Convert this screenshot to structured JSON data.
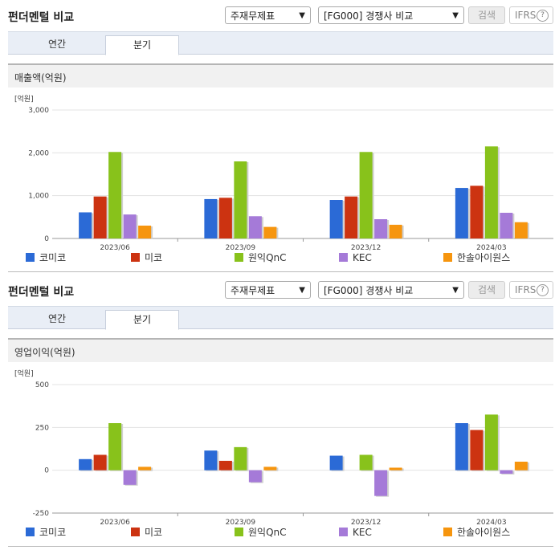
{
  "panels": [
    {
      "title": "펀더멘털 비교",
      "filter_type": "주재무제표",
      "filter_peer": "[FG000] 경쟁사 비교",
      "search_label": "검색",
      "ifrs_label": "IFRS",
      "help_label": "?",
      "tabs": [
        "연간",
        "분기"
      ],
      "section_title": "매출액(억원)"
    },
    {
      "title": "펀더멘털 비교",
      "filter_type": "주재무제표",
      "filter_peer": "[FG000] 경쟁사 비교",
      "search_label": "검색",
      "ifrs_label": "IFRS",
      "help_label": "?",
      "tabs": [
        "연간",
        "분기"
      ],
      "section_title": "영업이익(억원)"
    }
  ],
  "icons": {
    "dropdown": "chevron-down-icon",
    "help": "help-icon"
  },
  "colors": {
    "코미코": "#2b6ad6",
    "미코": "#cc3311",
    "원익QnC": "#88c21b",
    "KEC": "#a57ad8",
    "한솔아이원스": "#f6950e"
  },
  "chart_data": [
    {
      "type": "bar",
      "unit_label": "[억원]",
      "categories": [
        "2023/06",
        "2023/09",
        "2023/12",
        "2024/03"
      ],
      "ylim": [
        0,
        3000
      ],
      "yticks": [
        0,
        1000,
        2000,
        3000
      ],
      "ytick_labels": [
        "0",
        "1,000",
        "2,000",
        "3,000"
      ],
      "grid": true,
      "legend_position": "bottom",
      "series": [
        {
          "name": "코미코",
          "values": [
            610,
            920,
            900,
            1180
          ]
        },
        {
          "name": "미코",
          "values": [
            980,
            950,
            980,
            1230
          ]
        },
        {
          "name": "원익QnC",
          "values": [
            2020,
            1800,
            2020,
            2150
          ]
        },
        {
          "name": "KEC",
          "values": [
            560,
            520,
            450,
            600
          ]
        },
        {
          "name": "한솔아이원스",
          "values": [
            300,
            270,
            320,
            380
          ]
        }
      ]
    },
    {
      "type": "bar",
      "unit_label": "[억원]",
      "categories": [
        "2023/06",
        "2023/09",
        "2023/12",
        "2024/03"
      ],
      "ylim": [
        -250,
        500
      ],
      "yticks": [
        -250,
        0,
        250,
        500
      ],
      "ytick_labels": [
        "-250",
        "0",
        "250",
        "500"
      ],
      "grid": true,
      "legend_position": "bottom",
      "series": [
        {
          "name": "코미코",
          "values": [
            65,
            115,
            85,
            275
          ]
        },
        {
          "name": "미코",
          "values": [
            90,
            55,
            0,
            235
          ]
        },
        {
          "name": "원익QnC",
          "values": [
            275,
            135,
            90,
            325
          ]
        },
        {
          "name": "KEC",
          "values": [
            -85,
            -70,
            -150,
            -20
          ]
        },
        {
          "name": "한솔아이원스",
          "values": [
            20,
            20,
            15,
            50
          ]
        }
      ]
    }
  ]
}
